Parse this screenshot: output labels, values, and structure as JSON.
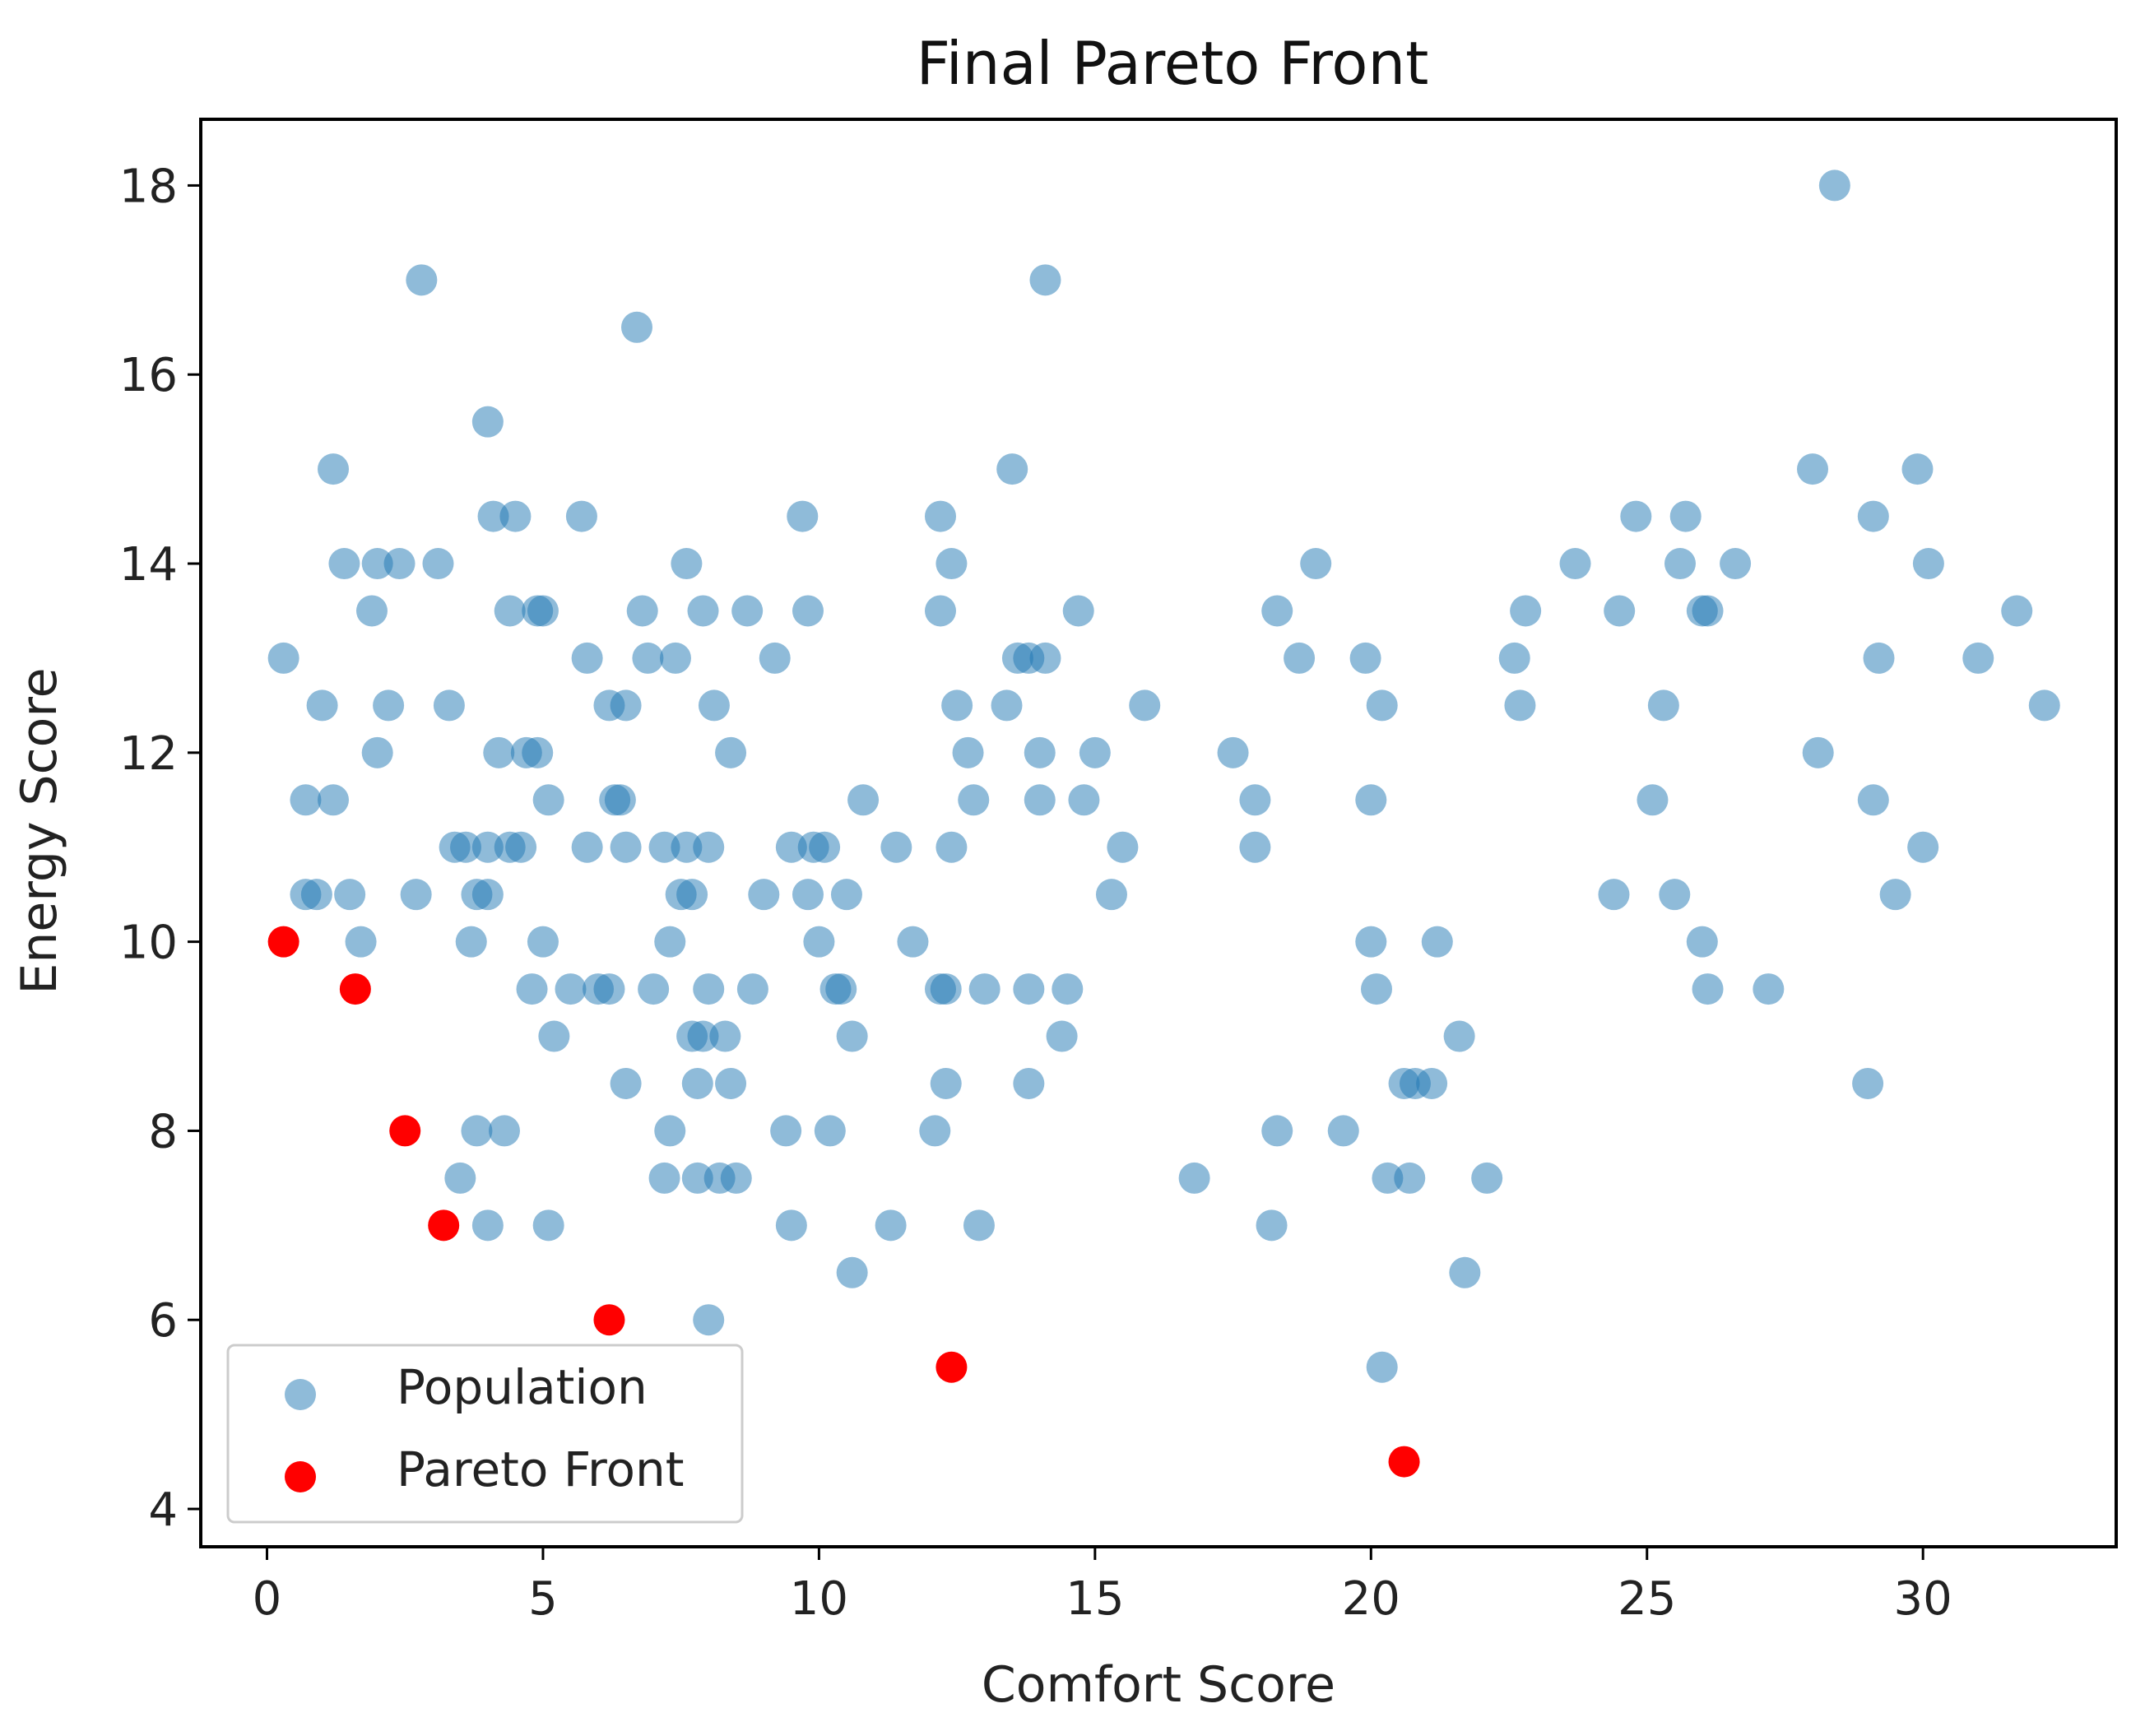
{
  "chart_data": {
    "type": "scatter",
    "title": "Final Pareto Front",
    "xlabel": "Comfort Score",
    "ylabel": "Energy Score",
    "xlim": [
      -1.2,
      33.5
    ],
    "ylim": [
      3.6,
      18.7
    ],
    "xticks": [
      0,
      5,
      10,
      15,
      20,
      25,
      30
    ],
    "yticks": [
      4,
      6,
      8,
      10,
      12,
      14,
      16,
      18
    ],
    "grid": false,
    "legend_position": "lower left",
    "colors": {
      "population": "#1f77b4",
      "pareto": "#ff0000"
    },
    "series": [
      {
        "name": "Population",
        "alpha": 0.5,
        "points": [
          [
            0.3,
            13
          ],
          [
            0.7,
            11.5
          ],
          [
            0.7,
            10.5
          ],
          [
            0.9,
            10.5
          ],
          [
            1.0,
            12.5
          ],
          [
            1.2,
            11.5
          ],
          [
            1.2,
            15
          ],
          [
            1.4,
            14
          ],
          [
            1.5,
            10.5
          ],
          [
            1.7,
            10
          ],
          [
            1.9,
            13.5
          ],
          [
            2.0,
            14
          ],
          [
            2.0,
            12
          ],
          [
            2.2,
            12.5
          ],
          [
            2.4,
            14
          ],
          [
            2.7,
            10.5
          ],
          [
            2.8,
            17
          ],
          [
            3.1,
            14
          ],
          [
            3.3,
            12.5
          ],
          [
            3.4,
            11
          ],
          [
            3.5,
            7.5
          ],
          [
            3.6,
            11
          ],
          [
            3.7,
            10
          ],
          [
            3.8,
            8
          ],
          [
            3.8,
            10.5
          ],
          [
            4.0,
            10.5
          ],
          [
            4.0,
            11
          ],
          [
            4.0,
            7
          ],
          [
            4.0,
            15.5
          ],
          [
            4.1,
            14.5
          ],
          [
            4.2,
            12
          ],
          [
            4.3,
            8
          ],
          [
            4.4,
            11
          ],
          [
            4.4,
            13.5
          ],
          [
            4.5,
            14.5
          ],
          [
            4.6,
            11
          ],
          [
            4.7,
            12
          ],
          [
            4.8,
            9.5
          ],
          [
            4.9,
            13.5
          ],
          [
            4.9,
            12
          ],
          [
            5.0,
            10
          ],
          [
            5.0,
            13.5
          ],
          [
            5.1,
            11.5
          ],
          [
            5.1,
            7
          ],
          [
            5.2,
            9
          ],
          [
            5.5,
            9.5
          ],
          [
            5.7,
            14.5
          ],
          [
            5.8,
            13
          ],
          [
            5.8,
            11
          ],
          [
            6.0,
            9.5
          ],
          [
            6.2,
            12.5
          ],
          [
            6.2,
            9.5
          ],
          [
            6.3,
            11.5
          ],
          [
            6.4,
            11.5
          ],
          [
            6.5,
            12.5
          ],
          [
            6.5,
            11
          ],
          [
            6.5,
            8.5
          ],
          [
            6.7,
            16.5
          ],
          [
            6.8,
            13.5
          ],
          [
            6.9,
            13
          ],
          [
            7.0,
            9.5
          ],
          [
            7.2,
            11
          ],
          [
            7.2,
            7.5
          ],
          [
            7.3,
            8
          ],
          [
            7.3,
            10
          ],
          [
            7.4,
            13
          ],
          [
            7.5,
            10.5
          ],
          [
            7.6,
            11
          ],
          [
            7.6,
            14
          ],
          [
            7.7,
            10.5
          ],
          [
            7.7,
            9
          ],
          [
            7.8,
            8.5
          ],
          [
            7.8,
            7.5
          ],
          [
            7.9,
            13.5
          ],
          [
            7.9,
            9
          ],
          [
            8.0,
            9.5
          ],
          [
            8.0,
            11
          ],
          [
            8.0,
            6
          ],
          [
            8.1,
            12.5
          ],
          [
            8.2,
            7.5
          ],
          [
            8.3,
            9
          ],
          [
            8.4,
            8.5
          ],
          [
            8.4,
            12
          ],
          [
            8.5,
            7.5
          ],
          [
            8.7,
            13.5
          ],
          [
            8.8,
            9.5
          ],
          [
            9.0,
            10.5
          ],
          [
            9.2,
            13
          ],
          [
            9.4,
            8
          ],
          [
            9.5,
            7
          ],
          [
            9.5,
            11
          ],
          [
            9.7,
            14.5
          ],
          [
            9.8,
            13.5
          ],
          [
            9.8,
            10.5
          ],
          [
            9.9,
            11
          ],
          [
            10.0,
            10
          ],
          [
            10.1,
            11
          ],
          [
            10.2,
            8
          ],
          [
            10.3,
            9.5
          ],
          [
            10.4,
            9.5
          ],
          [
            10.5,
            10.5
          ],
          [
            10.6,
            6.5
          ],
          [
            10.6,
            9
          ],
          [
            10.8,
            11.5
          ],
          [
            11.3,
            7
          ],
          [
            11.4,
            11
          ],
          [
            11.7,
            10
          ],
          [
            12.1,
            8
          ],
          [
            12.2,
            9.5
          ],
          [
            12.2,
            14.5
          ],
          [
            12.2,
            13.5
          ],
          [
            12.3,
            9.5
          ],
          [
            12.3,
            8.5
          ],
          [
            12.4,
            11
          ],
          [
            12.4,
            14
          ],
          [
            12.5,
            12.5
          ],
          [
            12.7,
            12
          ],
          [
            12.8,
            11.5
          ],
          [
            12.9,
            7
          ],
          [
            13.0,
            9.5
          ],
          [
            13.4,
            12.5
          ],
          [
            13.5,
            15
          ],
          [
            13.6,
            13
          ],
          [
            13.8,
            9.5
          ],
          [
            13.8,
            13
          ],
          [
            13.8,
            8.5
          ],
          [
            14.0,
            11.5
          ],
          [
            14.0,
            12
          ],
          [
            14.1,
            13
          ],
          [
            14.1,
            17
          ],
          [
            14.4,
            9
          ],
          [
            14.5,
            9.5
          ],
          [
            14.7,
            13.5
          ],
          [
            14.8,
            11.5
          ],
          [
            15.0,
            12
          ],
          [
            15.3,
            10.5
          ],
          [
            15.5,
            11
          ],
          [
            15.9,
            12.5
          ],
          [
            16.8,
            7.5
          ],
          [
            17.5,
            12
          ],
          [
            17.9,
            11.5
          ],
          [
            17.9,
            11
          ],
          [
            18.2,
            7
          ],
          [
            18.3,
            13.5
          ],
          [
            18.3,
            8
          ],
          [
            18.7,
            13
          ],
          [
            19.0,
            14
          ],
          [
            19.5,
            8
          ],
          [
            19.9,
            13
          ],
          [
            20.0,
            11.5
          ],
          [
            20.0,
            10
          ],
          [
            20.1,
            9.5
          ],
          [
            20.2,
            12.5
          ],
          [
            20.2,
            5.5
          ],
          [
            20.3,
            7.5
          ],
          [
            20.6,
            8.5
          ],
          [
            20.7,
            7.5
          ],
          [
            20.8,
            8.5
          ],
          [
            21.1,
            8.5
          ],
          [
            21.2,
            10
          ],
          [
            21.6,
            9
          ],
          [
            21.7,
            6.5
          ],
          [
            22.1,
            7.5
          ],
          [
            22.6,
            13
          ],
          [
            22.7,
            12.5
          ],
          [
            22.8,
            13.5
          ],
          [
            23.7,
            14
          ],
          [
            24.4,
            10.5
          ],
          [
            24.5,
            13.5
          ],
          [
            24.8,
            14.5
          ],
          [
            25.1,
            11.5
          ],
          [
            25.3,
            12.5
          ],
          [
            25.5,
            10.5
          ],
          [
            25.6,
            14
          ],
          [
            25.7,
            14.5
          ],
          [
            26.0,
            10
          ],
          [
            26.0,
            13.5
          ],
          [
            26.1,
            13.5
          ],
          [
            26.1,
            9.5
          ],
          [
            26.6,
            14
          ],
          [
            27.2,
            9.5
          ],
          [
            28.0,
            15
          ],
          [
            28.1,
            12
          ],
          [
            28.4,
            18
          ],
          [
            29.0,
            8.5
          ],
          [
            29.1,
            14.5
          ],
          [
            29.1,
            11.5
          ],
          [
            29.2,
            13
          ],
          [
            29.5,
            10.5
          ],
          [
            29.9,
            15
          ],
          [
            30.0,
            11
          ],
          [
            30.1,
            14
          ],
          [
            31.0,
            13
          ],
          [
            31.7,
            13.5
          ],
          [
            32.2,
            12.5
          ]
        ]
      },
      {
        "name": "Pareto Front",
        "alpha": 1.0,
        "points": [
          [
            0.3,
            10
          ],
          [
            1.6,
            9.5
          ],
          [
            2.5,
            8
          ],
          [
            3.2,
            7
          ],
          [
            6.2,
            6
          ],
          [
            12.4,
            5.5
          ],
          [
            20.6,
            4.5
          ]
        ]
      }
    ]
  }
}
